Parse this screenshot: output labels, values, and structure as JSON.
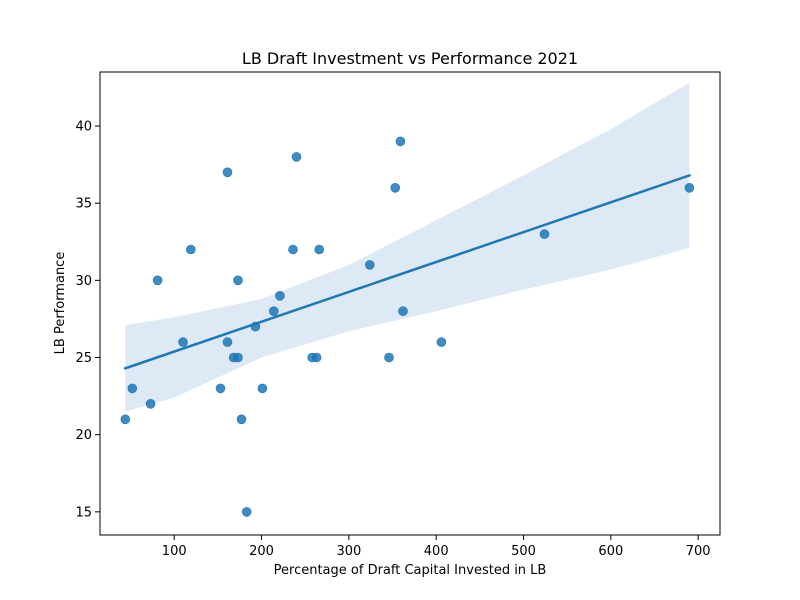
{
  "chart_data": {
    "type": "scatter",
    "title": "LB Draft Investment vs Performance 2021",
    "xlabel": "Percentage of Draft Capital Invested in LB",
    "ylabel": "LB Performance",
    "xlim": [
      15,
      725
    ],
    "ylim": [
      13.5,
      43.5
    ],
    "xticks": [
      100,
      200,
      300,
      400,
      500,
      600,
      700
    ],
    "yticks": [
      15,
      20,
      25,
      30,
      35,
      40
    ],
    "grid": false,
    "legend": "none",
    "colors": {
      "points": "#1f77b4",
      "line": "#1f77b4",
      "band": "#c6dbef"
    },
    "points": [
      {
        "x": 44,
        "y": 21
      },
      {
        "x": 52,
        "y": 23
      },
      {
        "x": 73,
        "y": 22
      },
      {
        "x": 81,
        "y": 30
      },
      {
        "x": 110,
        "y": 26
      },
      {
        "x": 119,
        "y": 32
      },
      {
        "x": 153,
        "y": 23
      },
      {
        "x": 161,
        "y": 37
      },
      {
        "x": 161,
        "y": 26
      },
      {
        "x": 168,
        "y": 25
      },
      {
        "x": 173,
        "y": 25
      },
      {
        "x": 173,
        "y": 30
      },
      {
        "x": 177,
        "y": 21
      },
      {
        "x": 183,
        "y": 15
      },
      {
        "x": 193,
        "y": 27
      },
      {
        "x": 201,
        "y": 23
      },
      {
        "x": 214,
        "y": 28
      },
      {
        "x": 221,
        "y": 29
      },
      {
        "x": 236,
        "y": 32
      },
      {
        "x": 240,
        "y": 38
      },
      {
        "x": 258,
        "y": 25
      },
      {
        "x": 263,
        "y": 25
      },
      {
        "x": 266,
        "y": 32
      },
      {
        "x": 324,
        "y": 31
      },
      {
        "x": 346,
        "y": 25
      },
      {
        "x": 353,
        "y": 36
      },
      {
        "x": 359,
        "y": 39
      },
      {
        "x": 362,
        "y": 28
      },
      {
        "x": 406,
        "y": 26
      },
      {
        "x": 524,
        "y": 33
      },
      {
        "x": 690,
        "y": 36
      }
    ],
    "regression": {
      "start": [
        44,
        24.3
      ],
      "end": [
        690,
        36.8
      ]
    },
    "confidence_band": {
      "x": [
        44,
        100,
        200,
        300,
        400,
        500,
        600,
        690
      ],
      "upper": [
        27.1,
        27.6,
        28.8,
        31.0,
        33.9,
        36.8,
        39.8,
        42.8
      ],
      "lower": [
        21.5,
        22.4,
        25.0,
        26.7,
        28.0,
        29.4,
        30.7,
        32.1
      ]
    }
  }
}
